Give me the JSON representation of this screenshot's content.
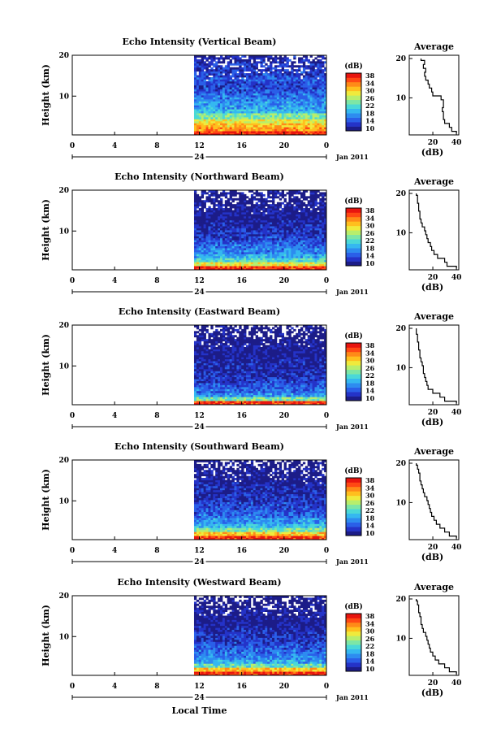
{
  "chart_data": {
    "type": "heatmap",
    "colorbar_colors": [
      "#1c1c88",
      "#2433c8",
      "#2a5fe8",
      "#2d8cf0",
      "#35b8f0",
      "#4ad8d8",
      "#7de6a6",
      "#b8ee6c",
      "#f0ea3c",
      "#ffbf1e",
      "#ff8a18",
      "#ff4814",
      "#e8150f"
    ],
    "shared": {
      "xticks": [
        "0",
        "4",
        "8",
        "12",
        "16",
        "20",
        "0"
      ],
      "day_labels": [
        "24"
      ],
      "date_label": "Jan 2011",
      "xlabel": "Local Time",
      "ylabel": "Height (km)",
      "yticks": [
        "10",
        "20"
      ],
      "ylim": [
        1,
        20
      ],
      "colorbar_unit": "(dB)",
      "colorbar_ticks": [
        "10",
        "14",
        "18",
        "22",
        "26",
        "30",
        "34",
        "38"
      ],
      "colorbar_range": [
        10,
        38
      ],
      "average_title": "Average",
      "average_xlabel": "(dB)",
      "average_xticks": [
        "20",
        "40"
      ],
      "average_xlim": [
        0,
        42
      ],
      "data_start_hour": 11.5,
      "data_end_hour": 24
    },
    "panels": [
      {
        "title": "Echo Intensity (Vertical Beam)",
        "profile_height_km": [
          1,
          2,
          3,
          4,
          5,
          6,
          7,
          8,
          9,
          10,
          11,
          12,
          13,
          14,
          15,
          16,
          17,
          18,
          19,
          20
        ],
        "profile_db": [
          40,
          36,
          34,
          30,
          29,
          29,
          28,
          29,
          29,
          27,
          20,
          19,
          17,
          16,
          14,
          13,
          14,
          12,
          13,
          10
        ],
        "layer_db": [
          36,
          32,
          30,
          28,
          24,
          20,
          19,
          18,
          17,
          16,
          15,
          14,
          14,
          15,
          14,
          13,
          13,
          12,
          12,
          11
        ]
      },
      {
        "title": "Echo Intensity (Northward Beam)",
        "profile_height_km": [
          1,
          2,
          3,
          4,
          5,
          6,
          7,
          8,
          9,
          10,
          11,
          12,
          13,
          14,
          15,
          16,
          17,
          18,
          19,
          20
        ],
        "profile_db": [
          40,
          32,
          30,
          24,
          21,
          19,
          18,
          16,
          15,
          14,
          13,
          11,
          10,
          9,
          9,
          8,
          8,
          7,
          7,
          6
        ],
        "layer_db": [
          36,
          28,
          22,
          19,
          17,
          16,
          15,
          14,
          13,
          13,
          12,
          12,
          11,
          11,
          11,
          11,
          10,
          10,
          10,
          10
        ]
      },
      {
        "title": "Echo Intensity (Eastward Beam)",
        "profile_height_km": [
          1,
          2,
          3,
          4,
          5,
          6,
          7,
          8,
          9,
          10,
          11,
          12,
          13,
          14,
          15,
          16,
          17,
          18,
          19,
          20
        ],
        "profile_db": [
          40,
          30,
          26,
          20,
          16,
          15,
          14,
          13,
          12,
          12,
          11,
          10,
          9,
          9,
          8,
          8,
          7,
          7,
          6,
          6
        ],
        "layer_db": [
          36,
          24,
          18,
          16,
          15,
          14,
          13,
          13,
          12,
          12,
          12,
          11,
          11,
          11,
          11,
          10,
          10,
          10,
          10,
          10
        ]
      },
      {
        "title": "Echo Intensity (Southward Beam)",
        "profile_height_km": [
          1,
          2,
          3,
          4,
          5,
          6,
          7,
          8,
          9,
          10,
          11,
          12,
          13,
          14,
          15,
          16,
          17,
          18,
          19,
          20
        ],
        "profile_db": [
          40,
          34,
          30,
          26,
          23,
          21,
          19,
          18,
          17,
          16,
          15,
          13,
          12,
          11,
          10,
          9,
          9,
          8,
          7,
          6
        ],
        "layer_db": [
          36,
          30,
          24,
          20,
          18,
          16,
          15,
          14,
          14,
          13,
          13,
          12,
          12,
          12,
          11,
          11,
          11,
          10,
          10,
          10
        ]
      },
      {
        "title": "Echo Intensity (Westward Beam)",
        "profile_height_km": [
          1,
          2,
          3,
          4,
          5,
          6,
          7,
          8,
          9,
          10,
          11,
          12,
          13,
          14,
          15,
          16,
          17,
          18,
          19,
          20
        ],
        "profile_db": [
          40,
          34,
          30,
          25,
          22,
          20,
          18,
          17,
          16,
          15,
          14,
          12,
          11,
          10,
          10,
          9,
          8,
          8,
          7,
          6
        ],
        "layer_db": [
          36,
          30,
          23,
          19,
          17,
          16,
          15,
          14,
          13,
          13,
          12,
          12,
          11,
          11,
          11,
          11,
          10,
          10,
          10,
          10
        ]
      }
    ]
  }
}
